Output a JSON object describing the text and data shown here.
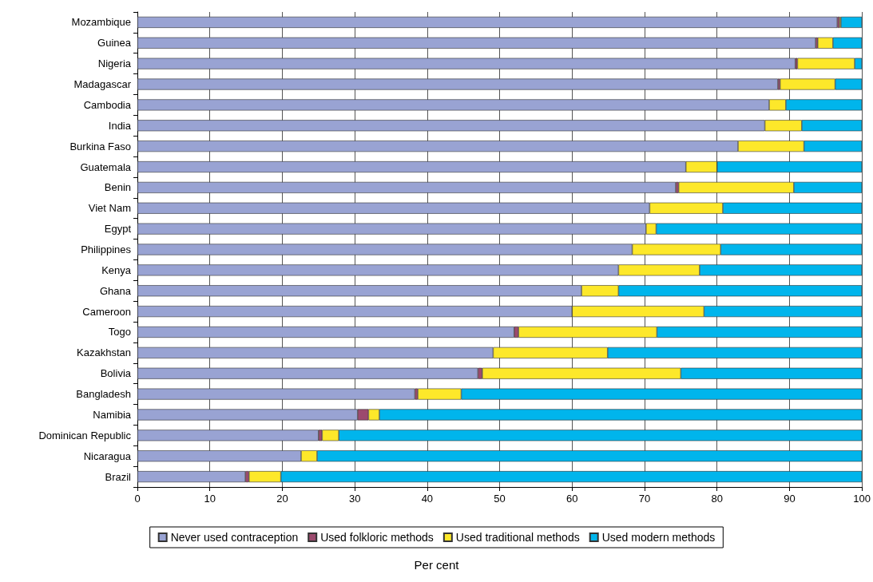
{
  "chart_data": {
    "type": "bar",
    "orientation": "horizontal",
    "stacked": true,
    "annotations": [
      "Per cent"
    ],
    "categories": [
      "Mozambique",
      "Guinea",
      "Nigeria",
      "Madagascar",
      "Cambodia",
      "India",
      "Burkina Faso",
      "Guatemala",
      "Benin",
      "Viet Nam",
      "Egypt",
      "Philippines",
      "Kenya",
      "Ghana",
      "Cameroon",
      "Togo",
      "Kazakhstan",
      "Bolivia",
      "Bangladesh",
      "Namibia",
      "Dominican Republic",
      "Nicaragua",
      "Brazil"
    ],
    "series": [
      {
        "name": "Never used contraception",
        "color": "#99a3d3",
        "values": [
          96.6,
          93.6,
          90.8,
          88.4,
          87.2,
          86.6,
          82.9,
          75.7,
          74.3,
          70.7,
          70.2,
          68.3,
          66.4,
          61.3,
          60.0,
          52.0,
          49.1,
          47.0,
          38.3,
          30.4,
          25.0,
          22.6,
          14.9
        ]
      },
      {
        "name": "Used folkloric methods",
        "color": "#9c4a6e",
        "values": [
          0.3,
          0.3,
          0.3,
          0.3,
          0,
          0,
          0,
          0,
          0.4,
          0,
          0,
          0,
          0,
          0,
          0,
          0.6,
          0,
          0.6,
          0.4,
          1.5,
          0.5,
          0,
          0.5
        ]
      },
      {
        "name": "Used traditional methods",
        "color": "#fde82a",
        "values": [
          0.2,
          2.1,
          7.9,
          7.6,
          2.3,
          5.1,
          9.1,
          4.3,
          15.9,
          10.1,
          1.4,
          12.2,
          11.2,
          5.1,
          18.2,
          19.1,
          15.8,
          27.4,
          6.0,
          1.5,
          2.3,
          2.2,
          4.4
        ]
      },
      {
        "name": "Used modern methods",
        "color": "#00b5ec",
        "values": [
          2.9,
          4.0,
          1.0,
          3.7,
          10.5,
          8.3,
          8.0,
          20.0,
          9.4,
          19.2,
          28.4,
          19.5,
          22.4,
          33.6,
          21.8,
          28.3,
          35.1,
          25.0,
          55.3,
          66.6,
          72.2,
          75.2,
          80.2
        ]
      }
    ],
    "xlim": [
      0,
      100
    ],
    "xticks": [
      0,
      10,
      20,
      30,
      40,
      50,
      60,
      70,
      80,
      90,
      100
    ],
    "grid": "x",
    "legend": "bottom"
  }
}
